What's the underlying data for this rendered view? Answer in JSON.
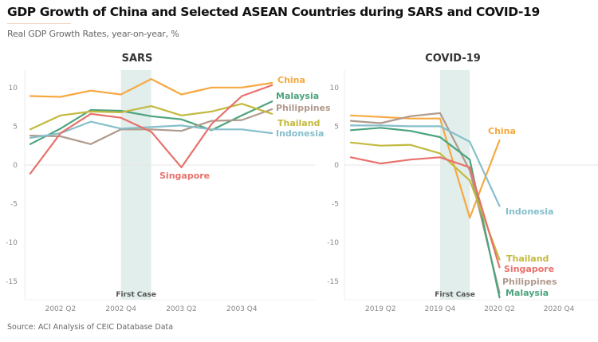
{
  "header": {
    "title": "GDP Growth of China and Selected ASEAN Countries during SARS and COVID-19",
    "subtitle": "Real GDP Growth Rates, year-on-year, %"
  },
  "footer": {
    "source": "Source: ACI Analysis of CEIC Database Data"
  },
  "colors": {
    "China": "#f7a941",
    "Malaysia": "#4ca47e",
    "Philippines": "#b09a8c",
    "Thailand": "#c3b93f",
    "Indonesia": "#86bfcb",
    "Singapore": "#e8716b",
    "band": "#dcebe8"
  },
  "chart_data": [
    {
      "type": "line",
      "title": "SARS",
      "x": [
        "2002 Q1",
        "2002 Q2",
        "2002 Q3",
        "2002 Q4",
        "2003 Q1",
        "2003 Q2",
        "2003 Q3",
        "2003 Q4",
        "2004 Q1"
      ],
      "x_tick_labels": [
        "2002 Q2",
        "2002 Q4",
        "2003 Q2",
        "2003 Q4"
      ],
      "y_ticks": [
        10,
        5,
        0,
        -5,
        -10,
        -15
      ],
      "ylim": [
        -17.5,
        12.5
      ],
      "grid": "zero-line",
      "annotation": {
        "label": "First Case",
        "from": "2002 Q4",
        "to": "2003 Q1"
      },
      "series": [
        {
          "name": "China",
          "values": [
            8.9,
            8.8,
            9.6,
            9.1,
            11.1,
            9.1,
            10.0,
            10.0,
            10.6
          ]
        },
        {
          "name": "Malaysia",
          "values": [
            2.7,
            4.7,
            7.1,
            7.0,
            6.3,
            5.9,
            4.5,
            6.4,
            8.2
          ]
        },
        {
          "name": "Philippines",
          "values": [
            3.8,
            3.7,
            2.7,
            4.6,
            4.6,
            4.4,
            5.7,
            5.8,
            7.2
          ]
        },
        {
          "name": "Thailand",
          "values": [
            4.6,
            6.4,
            6.9,
            6.8,
            7.6,
            6.4,
            6.9,
            7.9,
            6.6
          ]
        },
        {
          "name": "Indonesia",
          "values": [
            3.5,
            4.1,
            5.6,
            4.7,
            4.9,
            5.1,
            4.6,
            4.6,
            4.1
          ]
        },
        {
          "name": "Singapore",
          "values": [
            -1.1,
            4.1,
            6.6,
            6.1,
            4.3,
            -0.3,
            5.3,
            8.9,
            10.3
          ]
        }
      ],
      "labels": [
        "China",
        "Malaysia",
        "Philippines",
        "Thailand",
        "Indonesia",
        "Singapore"
      ]
    },
    {
      "type": "line",
      "title": "COVID-19",
      "x": [
        "2019 Q1",
        "2019 Q2",
        "2019 Q3",
        "2019 Q4",
        "2020 Q1",
        "2020 Q2",
        "2020 Q3",
        "2020 Q4",
        "2021 Q1"
      ],
      "x_tick_labels": [
        "2019 Q2",
        "2019 Q4",
        "2020 Q2",
        "2020 Q4"
      ],
      "y_ticks": [
        10,
        5,
        0,
        -5,
        -10,
        -15
      ],
      "ylim": [
        -17.5,
        12.5
      ],
      "grid": "zero-line",
      "annotation": {
        "label": "First Case",
        "from": "2019 Q4",
        "to": "2020 Q1"
      },
      "series": [
        {
          "name": "China",
          "values": [
            6.4,
            6.2,
            6.0,
            6.0,
            -6.8,
            3.2
          ]
        },
        {
          "name": "Philippines",
          "values": [
            5.7,
            5.4,
            6.3,
            6.7,
            -0.7,
            -16.5
          ]
        },
        {
          "name": "Indonesia",
          "values": [
            5.1,
            5.1,
            5.0,
            5.0,
            3.0,
            -5.3
          ]
        },
        {
          "name": "Malaysia",
          "values": [
            4.5,
            4.8,
            4.4,
            3.6,
            0.7,
            -17.1
          ]
        },
        {
          "name": "Thailand",
          "values": [
            2.9,
            2.5,
            2.6,
            1.5,
            -2.0,
            -12.2
          ]
        },
        {
          "name": "Singapore",
          "values": [
            1.0,
            0.2,
            0.7,
            1.0,
            -0.3,
            -13.2
          ]
        }
      ],
      "labels": [
        "China",
        "Indonesia",
        "Thailand",
        "Singapore",
        "Philippines",
        "Malaysia"
      ]
    }
  ]
}
